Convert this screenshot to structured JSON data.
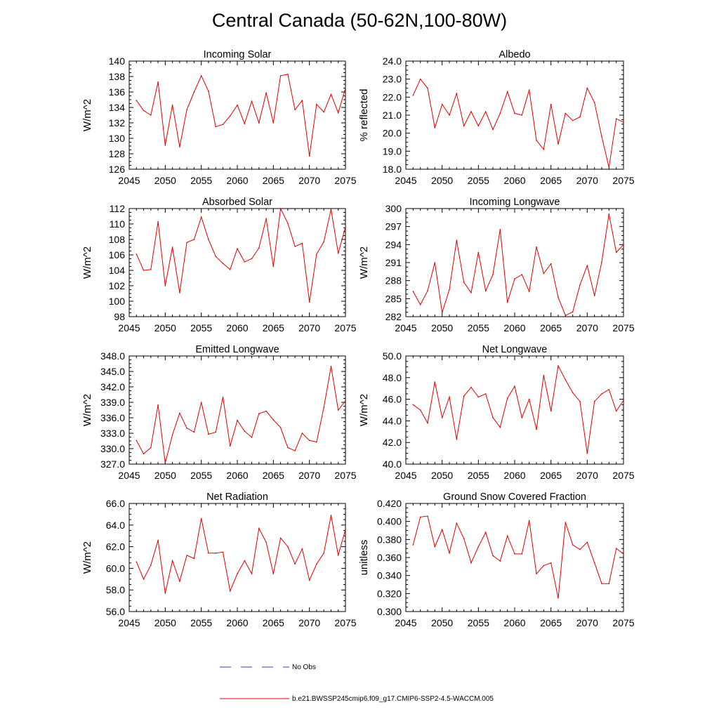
{
  "title": "Central Canada (50-62N,100-80W)",
  "colors": {
    "series": "#e00000",
    "obs": "#3b3bcc",
    "axis": "#000000"
  },
  "legend": {
    "obs_label": "No Obs",
    "model_label": "b.e21.BWSSP245cmip6.f09_g17.CMIP6-SSP2-4.5-WACCM.005"
  },
  "chart_data": [
    {
      "type": "line",
      "title": "Incoming Solar",
      "ylabel": "W/m^2",
      "xlim": [
        2045,
        2075
      ],
      "ylim": [
        126,
        140
      ],
      "xticks": [
        2045,
        2050,
        2055,
        2060,
        2065,
        2070,
        2075
      ],
      "yticks": [
        "126",
        "128",
        "130",
        "132",
        "134",
        "136",
        "138",
        "140"
      ],
      "x": [
        2046,
        2047,
        2048,
        2049,
        2050,
        2051,
        2052,
        2053,
        2054,
        2055,
        2056,
        2057,
        2058,
        2059,
        2060,
        2061,
        2062,
        2063,
        2064,
        2065,
        2066,
        2067,
        2068,
        2069,
        2070,
        2071,
        2072,
        2073,
        2074,
        2075
      ],
      "values": [
        134.9,
        133.6,
        133.0,
        137.3,
        129.1,
        134.3,
        128.9,
        133.7,
        136.0,
        138.1,
        136.1,
        131.5,
        131.8,
        132.9,
        134.3,
        131.9,
        134.8,
        132.0,
        135.9,
        132.0,
        138.1,
        138.3,
        133.7,
        134.9,
        127.7,
        134.4,
        133.4,
        135.7,
        133.3,
        136.5
      ]
    },
    {
      "type": "line",
      "title": "Albedo",
      "ylabel": "% reflected",
      "xlim": [
        2045,
        2075
      ],
      "ylim": [
        18.0,
        24.0
      ],
      "xticks": [
        2045,
        2050,
        2055,
        2060,
        2065,
        2070,
        2075
      ],
      "yticks": [
        "18.0",
        "19.0",
        "20.0",
        "21.0",
        "22.0",
        "23.0",
        "24.0"
      ],
      "x": [
        2046,
        2047,
        2048,
        2049,
        2050,
        2051,
        2052,
        2053,
        2054,
        2055,
        2056,
        2057,
        2058,
        2059,
        2060,
        2061,
        2062,
        2063,
        2064,
        2065,
        2066,
        2067,
        2068,
        2069,
        2070,
        2071,
        2072,
        2073,
        2074,
        2075
      ],
      "values": [
        22.1,
        23.0,
        22.5,
        20.3,
        21.6,
        21.0,
        22.2,
        20.4,
        21.2,
        20.4,
        21.2,
        20.2,
        21.1,
        22.3,
        21.1,
        21.0,
        22.4,
        19.6,
        19.1,
        21.6,
        19.4,
        21.1,
        20.7,
        20.9,
        22.5,
        21.7,
        19.8,
        18.1,
        20.8,
        20.6
      ]
    },
    {
      "type": "line",
      "title": "Absorbed Solar",
      "ylabel": "W/m^2",
      "xlim": [
        2045,
        2075
      ],
      "ylim": [
        98,
        112
      ],
      "xticks": [
        2045,
        2050,
        2055,
        2060,
        2065,
        2070,
        2075
      ],
      "yticks": [
        "98",
        "100",
        "102",
        "104",
        "106",
        "108",
        "110",
        "112"
      ],
      "x": [
        2046,
        2047,
        2048,
        2049,
        2050,
        2051,
        2052,
        2053,
        2054,
        2055,
        2056,
        2057,
        2058,
        2059,
        2060,
        2061,
        2062,
        2063,
        2064,
        2065,
        2066,
        2067,
        2068,
        2069,
        2070,
        2071,
        2072,
        2073,
        2074,
        2075
      ],
      "values": [
        106.1,
        104.0,
        104.1,
        110.3,
        102.0,
        107.0,
        101.1,
        107.6,
        108.0,
        110.9,
        108.0,
        105.8,
        104.9,
        104.1,
        106.8,
        105.1,
        105.5,
        106.9,
        110.7,
        104.5,
        112.0,
        110.1,
        107.1,
        107.5,
        99.9,
        106.1,
        107.7,
        111.9,
        106.2,
        109.6
      ]
    },
    {
      "type": "line",
      "title": "Incoming Longwave",
      "ylabel": "W/m^2",
      "xlim": [
        2045,
        2075
      ],
      "ylim": [
        282,
        300
      ],
      "xticks": [
        2045,
        2050,
        2055,
        2060,
        2065,
        2070,
        2075
      ],
      "yticks": [
        "282",
        "285",
        "288",
        "291",
        "294",
        "297",
        "300"
      ],
      "x": [
        2046,
        2047,
        2048,
        2049,
        2050,
        2051,
        2052,
        2053,
        2054,
        2055,
        2056,
        2057,
        2058,
        2059,
        2060,
        2061,
        2062,
        2063,
        2064,
        2065,
        2066,
        2067,
        2068,
        2069,
        2070,
        2071,
        2072,
        2073,
        2074,
        2075
      ],
      "values": [
        286.2,
        284.0,
        286.3,
        291.0,
        282.7,
        286.5,
        294.7,
        287.7,
        286.0,
        292.7,
        286.3,
        289.0,
        296.5,
        284.4,
        288.3,
        289.0,
        286.2,
        293.6,
        289.2,
        290.8,
        285.2,
        282.2,
        282.8,
        287.3,
        290.5,
        285.5,
        291.1,
        299.1,
        292.7,
        294.0
      ]
    },
    {
      "type": "line",
      "title": "Emitted Longwave",
      "ylabel": "W/m^2",
      "xlim": [
        2045,
        2075
      ],
      "ylim": [
        327.0,
        348.0
      ],
      "xticks": [
        2045,
        2050,
        2055,
        2060,
        2065,
        2070,
        2075
      ],
      "yticks": [
        "327.0",
        "330.0",
        "333.0",
        "336.0",
        "339.0",
        "342.0",
        "345.0",
        "348.0"
      ],
      "x": [
        2046,
        2047,
        2048,
        2049,
        2050,
        2051,
        2052,
        2053,
        2054,
        2055,
        2056,
        2057,
        2058,
        2059,
        2060,
        2061,
        2062,
        2063,
        2064,
        2065,
        2066,
        2067,
        2068,
        2069,
        2070,
        2071,
        2072,
        2073,
        2074,
        2075
      ],
      "values": [
        331.6,
        329.0,
        330.2,
        338.5,
        327.2,
        332.7,
        336.9,
        334.0,
        333.2,
        339.0,
        332.8,
        333.2,
        340.0,
        330.5,
        335.5,
        333.4,
        332.2,
        336.8,
        337.3,
        335.6,
        334.1,
        330.2,
        329.6,
        333.0,
        331.6,
        331.3,
        338.0,
        346.0,
        337.5,
        339.3
      ]
    },
    {
      "type": "line",
      "title": "Net Longwave",
      "ylabel": "W/m^2",
      "xlim": [
        2045,
        2075
      ],
      "ylim": [
        40.0,
        50.0
      ],
      "xticks": [
        2045,
        2050,
        2055,
        2060,
        2065,
        2070,
        2075
      ],
      "yticks": [
        "40.0",
        "42.0",
        "44.0",
        "46.0",
        "48.0",
        "50.0"
      ],
      "x": [
        2046,
        2047,
        2048,
        2049,
        2050,
        2051,
        2052,
        2053,
        2054,
        2055,
        2056,
        2057,
        2058,
        2059,
        2060,
        2061,
        2062,
        2063,
        2064,
        2065,
        2066,
        2067,
        2068,
        2069,
        2070,
        2071,
        2072,
        2073,
        2074,
        2075
      ],
      "values": [
        45.5,
        45.0,
        43.8,
        47.6,
        44.3,
        46.2,
        42.3,
        46.3,
        47.1,
        46.2,
        46.5,
        44.3,
        43.4,
        46.1,
        47.2,
        44.3,
        46.0,
        43.2,
        48.2,
        44.9,
        49.1,
        47.8,
        46.6,
        45.8,
        41.0,
        45.8,
        46.5,
        46.9,
        44.9,
        45.9
      ]
    },
    {
      "type": "line",
      "title": "Net Radiation",
      "ylabel": "W/m^2",
      "xlim": [
        2045,
        2075
      ],
      "ylim": [
        56.0,
        66.0
      ],
      "xticks": [
        2045,
        2050,
        2055,
        2060,
        2065,
        2070,
        2075
      ],
      "yticks": [
        "56.0",
        "58.0",
        "60.0",
        "62.0",
        "64.0",
        "66.0"
      ],
      "x": [
        2046,
        2047,
        2048,
        2049,
        2050,
        2051,
        2052,
        2053,
        2054,
        2055,
        2056,
        2057,
        2058,
        2059,
        2060,
        2061,
        2062,
        2063,
        2064,
        2065,
        2066,
        2067,
        2068,
        2069,
        2070,
        2071,
        2072,
        2073,
        2074,
        2075
      ],
      "values": [
        60.6,
        59.0,
        60.3,
        62.6,
        57.7,
        60.7,
        58.8,
        61.2,
        60.9,
        64.6,
        61.4,
        61.4,
        61.5,
        57.9,
        59.5,
        60.7,
        59.5,
        63.7,
        62.4,
        59.5,
        62.8,
        62.0,
        60.4,
        61.8,
        58.9,
        60.4,
        61.4,
        64.9,
        61.2,
        63.6
      ]
    },
    {
      "type": "line",
      "title": "Ground Snow Covered Fraction",
      "ylabel": "unitless",
      "xlim": [
        2045,
        2075
      ],
      "ylim": [
        0.3,
        0.42
      ],
      "xticks": [
        2045,
        2050,
        2055,
        2060,
        2065,
        2070,
        2075
      ],
      "yticks": [
        "0.300",
        "0.320",
        "0.340",
        "0.360",
        "0.380",
        "0.400",
        "0.420"
      ],
      "x": [
        2046,
        2047,
        2048,
        2049,
        2050,
        2051,
        2052,
        2053,
        2054,
        2055,
        2056,
        2057,
        2058,
        2059,
        2060,
        2061,
        2062,
        2063,
        2064,
        2065,
        2066,
        2067,
        2068,
        2069,
        2070,
        2071,
        2072,
        2073,
        2074,
        2075
      ],
      "values": [
        0.374,
        0.405,
        0.406,
        0.372,
        0.391,
        0.365,
        0.398,
        0.381,
        0.354,
        0.372,
        0.388,
        0.362,
        0.356,
        0.384,
        0.364,
        0.364,
        0.401,
        0.342,
        0.351,
        0.354,
        0.315,
        0.399,
        0.374,
        0.369,
        0.377,
        0.354,
        0.331,
        0.331,
        0.37,
        0.364
      ]
    }
  ]
}
